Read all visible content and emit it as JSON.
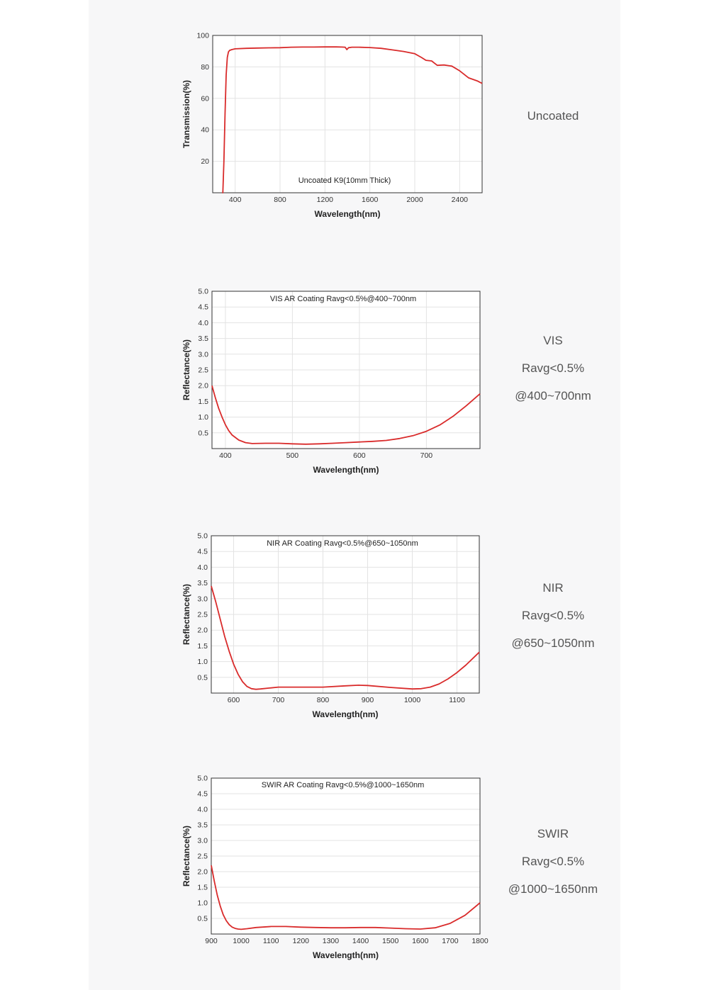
{
  "accent_color": "#d92b2b",
  "chart_data": [
    {
      "type": "line",
      "title": "Uncoated K9(10mm Thick)",
      "xlabel": "Wavelength(nm)",
      "ylabel": "Transmission(%)",
      "xlim": [
        200,
        2600
      ],
      "ylim": [
        0,
        100
      ],
      "xticks": [
        400,
        800,
        1200,
        1600,
        2000,
        2400
      ],
      "yticks": [
        20,
        40,
        60,
        80,
        100
      ],
      "grid": true,
      "series": [
        {
          "x": [
            285,
            290,
            300,
            310,
            320,
            330,
            340,
            350,
            370,
            400,
            500,
            600,
            700,
            800,
            900,
            1000,
            1100,
            1200,
            1300,
            1350,
            1380,
            1395,
            1410,
            1440,
            1500,
            1600,
            1700,
            1800,
            1900,
            2000,
            2060,
            2100,
            2150,
            2200,
            2260,
            2330,
            2400,
            2480,
            2560,
            2600
          ],
          "y": [
            0,
            0,
            20,
            50,
            75,
            86,
            89.5,
            90.5,
            91,
            91.5,
            91.8,
            92,
            92.1,
            92.2,
            92.5,
            92.6,
            92.6,
            92.7,
            92.7,
            92.6,
            92.5,
            91,
            92.2,
            92.5,
            92.5,
            92.3,
            91.8,
            90.8,
            89.8,
            88.4,
            86,
            84.2,
            83.8,
            81,
            81.2,
            80.5,
            77.5,
            73,
            71,
            69.5
          ]
        }
      ]
    },
    {
      "type": "line",
      "title": "VIS AR Coating Ravg<0.5%@400~700nm",
      "xlabel": "Wavelength(nm)",
      "ylabel": "Reflectance(%)",
      "xlim": [
        380,
        780
      ],
      "ylim": [
        0,
        5
      ],
      "xticks": [
        400,
        500,
        600,
        700
      ],
      "yticks": [
        0.5,
        1.0,
        1.5,
        2.0,
        2.5,
        3.0,
        3.5,
        4.0,
        4.5,
        5.0
      ],
      "grid": true,
      "series": [
        {
          "x": [
            380,
            385,
            390,
            395,
            400,
            405,
            410,
            420,
            430,
            440,
            460,
            480,
            500,
            520,
            540,
            560,
            580,
            600,
            620,
            640,
            660,
            680,
            700,
            720,
            740,
            760,
            780
          ],
          "y": [
            2.0,
            1.62,
            1.28,
            1.0,
            0.76,
            0.57,
            0.43,
            0.27,
            0.19,
            0.16,
            0.17,
            0.17,
            0.15,
            0.14,
            0.15,
            0.17,
            0.19,
            0.21,
            0.23,
            0.26,
            0.32,
            0.41,
            0.55,
            0.75,
            1.03,
            1.37,
            1.74
          ]
        }
      ]
    },
    {
      "type": "line",
      "title": "NIR AR Coating Ravg<0.5%@650~1050nm",
      "xlabel": "Wavelength(nm)",
      "ylabel": "Reflectance(%)",
      "xlim": [
        550,
        1150
      ],
      "ylim": [
        0,
        5
      ],
      "xticks": [
        600,
        700,
        800,
        900,
        1000,
        1100
      ],
      "yticks": [
        0.5,
        1.0,
        1.5,
        2.0,
        2.5,
        3.0,
        3.5,
        4.0,
        4.5,
        5.0
      ],
      "grid": true,
      "series": [
        {
          "x": [
            550,
            560,
            570,
            580,
            590,
            600,
            610,
            620,
            630,
            640,
            650,
            660,
            680,
            700,
            750,
            800,
            850,
            880,
            900,
            950,
            1000,
            1020,
            1040,
            1060,
            1080,
            1100,
            1120,
            1150
          ],
          "y": [
            3.4,
            2.9,
            2.35,
            1.8,
            1.33,
            0.92,
            0.6,
            0.36,
            0.21,
            0.14,
            0.12,
            0.13,
            0.16,
            0.19,
            0.19,
            0.19,
            0.23,
            0.25,
            0.24,
            0.18,
            0.13,
            0.14,
            0.19,
            0.29,
            0.45,
            0.65,
            0.89,
            1.3
          ]
        }
      ]
    },
    {
      "type": "line",
      "title": "SWIR AR Coating Ravg<0.5%@1000~1650nm",
      "xlabel": "Wavelength(nm)",
      "ylabel": "Reflectance(%)",
      "xlim": [
        900,
        1800
      ],
      "ylim": [
        0,
        5
      ],
      "xticks": [
        900,
        1000,
        1100,
        1200,
        1300,
        1400,
        1500,
        1600,
        1700,
        1800
      ],
      "yticks": [
        0.5,
        1.0,
        1.5,
        2.0,
        2.5,
        3.0,
        3.5,
        4.0,
        4.5,
        5.0
      ],
      "grid": true,
      "series": [
        {
          "x": [
            900,
            910,
            920,
            930,
            940,
            950,
            960,
            970,
            980,
            990,
            1000,
            1020,
            1050,
            1100,
            1150,
            1200,
            1250,
            1300,
            1350,
            1400,
            1450,
            1500,
            1550,
            1600,
            1650,
            1700,
            1750,
            1800
          ],
          "y": [
            2.2,
            1.7,
            1.25,
            0.9,
            0.62,
            0.43,
            0.3,
            0.22,
            0.18,
            0.16,
            0.15,
            0.17,
            0.21,
            0.24,
            0.24,
            0.22,
            0.21,
            0.2,
            0.2,
            0.21,
            0.21,
            0.19,
            0.17,
            0.16,
            0.2,
            0.34,
            0.6,
            1.0
          ]
        }
      ]
    }
  ],
  "side_labels": [
    [
      "Uncoated"
    ],
    [
      "VIS",
      "Ravg<0.5%",
      "@400~700nm"
    ],
    [
      "NIR",
      "Ravg<0.5%",
      "@650~1050nm"
    ],
    [
      "SWIR",
      "Ravg<0.5%",
      "@1000~1650nm"
    ]
  ]
}
